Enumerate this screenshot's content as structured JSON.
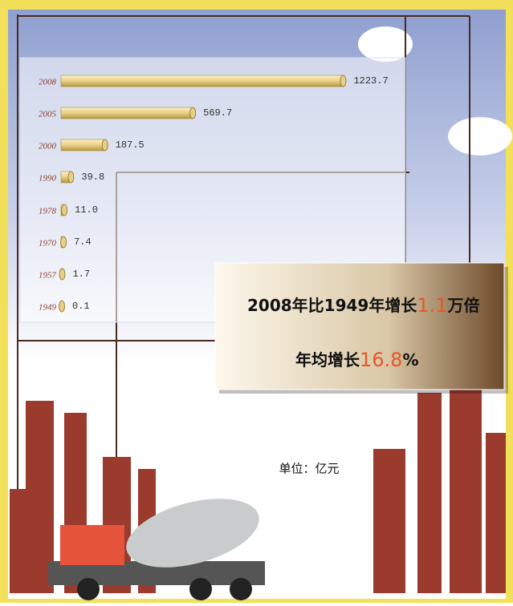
{
  "chart_data": {
    "type": "bar",
    "orientation": "horizontal",
    "categories": [
      "2008",
      "2005",
      "2000",
      "1990",
      "1978",
      "1970",
      "1957",
      "1949"
    ],
    "values": [
      1223.7,
      569.7,
      187.5,
      39.8,
      11.0,
      7.4,
      1.7,
      0.1
    ],
    "value_labels": [
      "1223.7",
      "569.7",
      "187.5",
      "39.8",
      "11.0",
      "7.4",
      "1.7",
      "0.1"
    ],
    "xlim": [
      0,
      1250
    ],
    "color": "#e7cf86",
    "unit": "单位：亿元",
    "annotations": [
      [
        "2008年比1949年增长",
        "1.1",
        "万倍"
      ],
      [
        "年均增长",
        "16.8",
        "%"
      ]
    ]
  }
}
